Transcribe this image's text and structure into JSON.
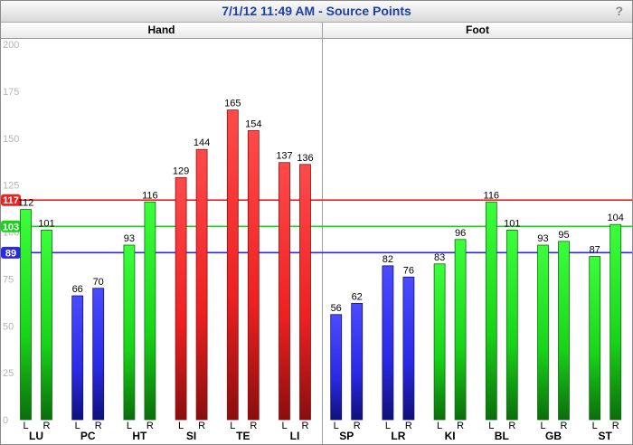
{
  "window": {
    "title": "7/1/12 11:49 AM - Source Points",
    "help_label": "?"
  },
  "colors": {
    "red": "#ee2020",
    "green": "#18d418",
    "blue": "#2a2ae6"
  },
  "chart_data": {
    "type": "bar",
    "ylim": [
      0,
      200
    ],
    "yticks": [
      0,
      25,
      50,
      75,
      100,
      125,
      150,
      175,
      200
    ],
    "panels": [
      {
        "name": "Hand",
        "categories": [
          "LU",
          "PC",
          "HT",
          "SI",
          "TE",
          "LI"
        ]
      },
      {
        "name": "Foot",
        "categories": [
          "SP",
          "LR",
          "KI",
          "BL",
          "GB",
          "ST"
        ]
      }
    ],
    "side_labels": [
      "L",
      "R"
    ],
    "series": [
      {
        "name": "L",
        "values": [
          112,
          66,
          93,
          129,
          165,
          137,
          56,
          82,
          83,
          116,
          93,
          87
        ],
        "colors": [
          "green",
          "blue",
          "green",
          "red",
          "red",
          "red",
          "blue",
          "blue",
          "green",
          "green",
          "green",
          "green"
        ]
      },
      {
        "name": "R",
        "values": [
          101,
          70,
          116,
          144,
          154,
          136,
          62,
          76,
          96,
          101,
          95,
          104
        ],
        "colors": [
          "green",
          "blue",
          "green",
          "red",
          "red",
          "red",
          "blue",
          "blue",
          "green",
          "green",
          "green",
          "green"
        ]
      }
    ],
    "reference_lines": [
      {
        "value": 117,
        "color": "red",
        "label": "117"
      },
      {
        "value": 103,
        "color": "green",
        "label": "103"
      },
      {
        "value": 89,
        "color": "blue",
        "label": "89"
      }
    ],
    "grid": false
  }
}
